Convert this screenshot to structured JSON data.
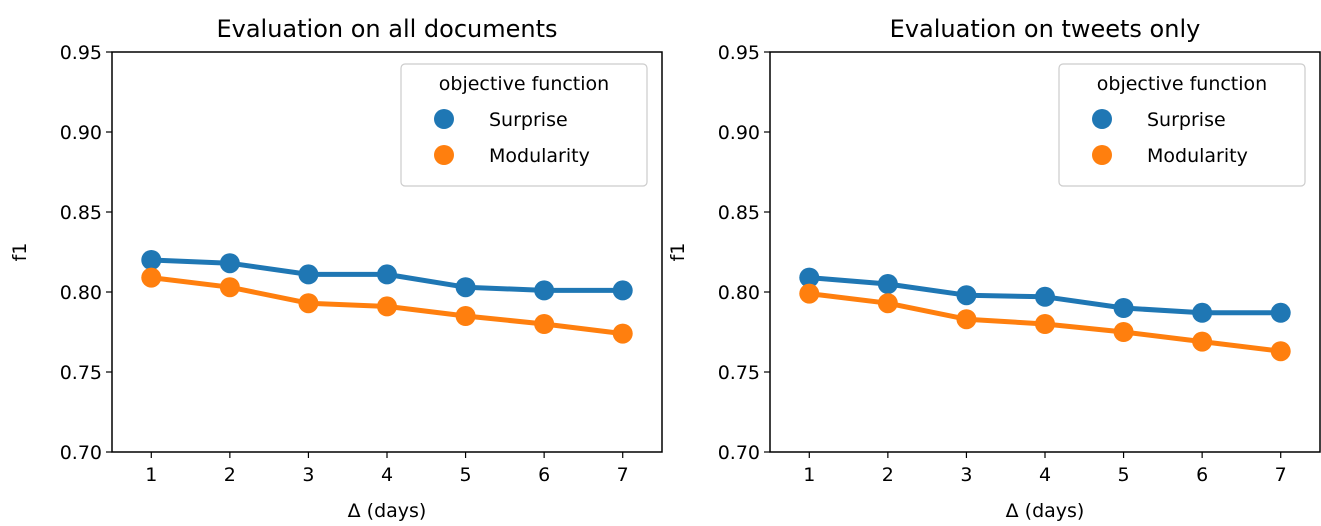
{
  "chart_data": [
    {
      "type": "line",
      "title": "Evaluation on all documents",
      "xlabel": "Δ (days)",
      "ylabel": "f1",
      "x": [
        1,
        2,
        3,
        4,
        5,
        6,
        7
      ],
      "x_tick_labels": [
        "1",
        "2",
        "3",
        "4",
        "5",
        "6",
        "7"
      ],
      "ylim": [
        0.7,
        0.95
      ],
      "y_ticks": [
        0.7,
        0.75,
        0.8,
        0.85,
        0.9,
        0.95
      ],
      "y_tick_labels": [
        "0.70",
        "0.75",
        "0.80",
        "0.85",
        "0.90",
        "0.95"
      ],
      "grid": false,
      "legend": {
        "title": "objective function",
        "placement": "top-right"
      },
      "series": [
        {
          "name": "Surprise",
          "color": "#1f77b4",
          "values": [
            0.82,
            0.818,
            0.811,
            0.811,
            0.803,
            0.801,
            0.801
          ]
        },
        {
          "name": "Modularity",
          "color": "#ff7f0e",
          "values": [
            0.809,
            0.803,
            0.793,
            0.791,
            0.785,
            0.78,
            0.774
          ]
        }
      ]
    },
    {
      "type": "line",
      "title": "Evaluation on tweets only",
      "xlabel": "Δ (days)",
      "ylabel": "f1",
      "x": [
        1,
        2,
        3,
        4,
        5,
        6,
        7
      ],
      "x_tick_labels": [
        "1",
        "2",
        "3",
        "4",
        "5",
        "6",
        "7"
      ],
      "ylim": [
        0.7,
        0.95
      ],
      "y_ticks": [
        0.7,
        0.75,
        0.8,
        0.85,
        0.9,
        0.95
      ],
      "y_tick_labels": [
        "0.70",
        "0.75",
        "0.80",
        "0.85",
        "0.90",
        "0.95"
      ],
      "grid": false,
      "legend": {
        "title": "objective function",
        "placement": "top-right"
      },
      "series": [
        {
          "name": "Surprise",
          "color": "#1f77b4",
          "values": [
            0.809,
            0.805,
            0.798,
            0.797,
            0.79,
            0.787,
            0.787
          ]
        },
        {
          "name": "Modularity",
          "color": "#ff7f0e",
          "values": [
            0.799,
            0.793,
            0.783,
            0.78,
            0.775,
            0.769,
            0.763
          ]
        }
      ]
    }
  ]
}
